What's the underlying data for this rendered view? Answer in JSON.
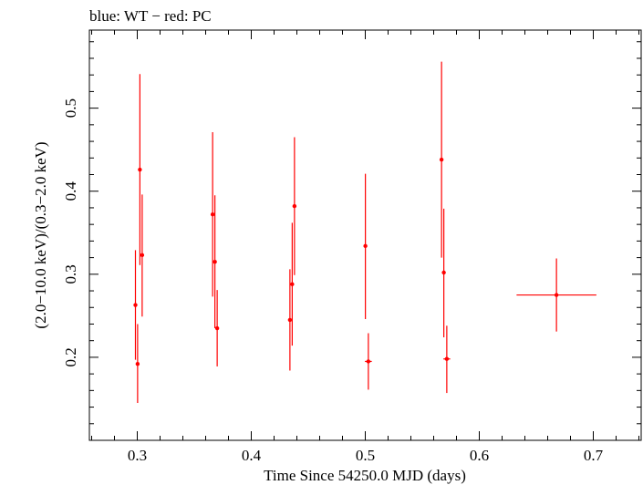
{
  "chart_data": {
    "type": "scatter",
    "title": "blue: WT − red: PC",
    "xlabel": "Time Since 54250.0 MJD (days)",
    "ylabel": "(2.0−10.0 keV)/(0.3−2.0 keV)",
    "xlim": [
      0.258,
      0.742
    ],
    "ylim": [
      0.1,
      0.594
    ],
    "x_ticks": [
      {
        "value": 0.3,
        "label": "0.3"
      },
      {
        "value": 0.4,
        "label": "0.4"
      },
      {
        "value": 0.5,
        "label": "0.5"
      },
      {
        "value": 0.6,
        "label": "0.6"
      },
      {
        "value": 0.7,
        "label": "0.7"
      }
    ],
    "y_ticks": [
      {
        "value": 0.2,
        "label": "0.2"
      },
      {
        "value": 0.3,
        "label": "0.3"
      },
      {
        "value": 0.4,
        "label": "0.4"
      },
      {
        "value": 0.5,
        "label": "0.5"
      }
    ],
    "grid": false,
    "series": [
      {
        "color": "#ff0000",
        "points": [
          {
            "x": 0.2984,
            "y": 0.263,
            "ylo": 0.197,
            "yhi": 0.329,
            "xerr": 0.001
          },
          {
            "x": 0.3003,
            "y": 0.192,
            "ylo": 0.145,
            "yhi": 0.24,
            "xerr": 0.001
          },
          {
            "x": 0.3023,
            "y": 0.426,
            "ylo": 0.311,
            "yhi": 0.541,
            "xerr": 0.001
          },
          {
            "x": 0.3043,
            "y": 0.323,
            "ylo": 0.249,
            "yhi": 0.396,
            "xerr": 0.001
          },
          {
            "x": 0.3661,
            "y": 0.372,
            "ylo": 0.273,
            "yhi": 0.471,
            "xerr": 0.001
          },
          {
            "x": 0.3681,
            "y": 0.315,
            "ylo": 0.235,
            "yhi": 0.395,
            "xerr": 0.001
          },
          {
            "x": 0.3701,
            "y": 0.235,
            "ylo": 0.189,
            "yhi": 0.281,
            "xerr": 0.001
          },
          {
            "x": 0.4339,
            "y": 0.245,
            "ylo": 0.184,
            "yhi": 0.306,
            "xerr": 0.001
          },
          {
            "x": 0.4359,
            "y": 0.288,
            "ylo": 0.214,
            "yhi": 0.362,
            "xerr": 0.001
          },
          {
            "x": 0.4379,
            "y": 0.382,
            "ylo": 0.299,
            "yhi": 0.465,
            "xerr": 0.001
          },
          {
            "x": 0.5001,
            "y": 0.334,
            "ylo": 0.246,
            "yhi": 0.421,
            "xerr": 0.001
          },
          {
            "x": 0.5027,
            "y": 0.195,
            "ylo": 0.161,
            "yhi": 0.229,
            "xerr": 0.003
          },
          {
            "x": 0.5669,
            "y": 0.438,
            "ylo": 0.32,
            "yhi": 0.556,
            "xerr": 0.001
          },
          {
            "x": 0.5689,
            "y": 0.302,
            "ylo": 0.224,
            "yhi": 0.379,
            "xerr": 0.001
          },
          {
            "x": 0.5715,
            "y": 0.198,
            "ylo": 0.157,
            "yhi": 0.238,
            "xerr": 0.003
          },
          {
            "x": 0.6677,
            "y": 0.275,
            "ylo": 0.231,
            "yhi": 0.319,
            "xerr": 0.035
          }
        ]
      }
    ]
  }
}
